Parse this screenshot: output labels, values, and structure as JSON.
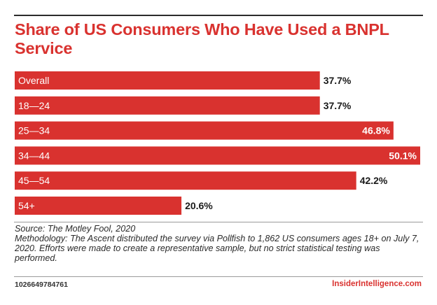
{
  "chart_data": {
    "type": "bar",
    "orientation": "horizontal",
    "title": "Share of US Consumers Who Have Used a BNPL Service",
    "categories": [
      "Overall",
      "18—24",
      "25—34",
      "34—44",
      "45—54",
      "54+"
    ],
    "values": [
      37.7,
      37.7,
      46.8,
      50.1,
      42.2,
      20.6
    ],
    "value_labels": [
      "37.7%",
      "37.7%",
      "46.8%",
      "50.1%",
      "42.2%",
      "20.6%"
    ],
    "xlim": [
      0,
      50.1
    ],
    "grid": false,
    "xlabel": "",
    "ylabel": "",
    "bar_color": "#d9322f",
    "label_color_outside": "#1a1a1a",
    "label_color_inside": "#ffffff"
  },
  "footnote": {
    "source": "Source: The Motley Fool, 2020",
    "methodology": "Methodology: The Ascent distributed the survey via Pollfish to 1,862 US consumers ages 18+ on July 7, 2020. Efforts were made to create a representative sample, but no strict statistical testing was performed."
  },
  "footer": {
    "chart_id": "1026649784761",
    "brand": "InsiderIntelligence.com"
  }
}
